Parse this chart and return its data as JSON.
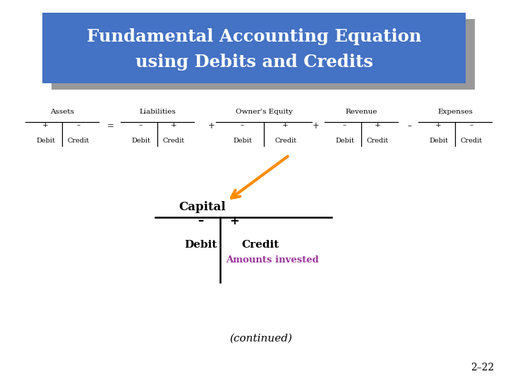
{
  "title_line1": "Fundamental Accounting Equation",
  "title_line2": "using Debits and Credits",
  "title_bg_color": "#4472C4",
  "title_shadow_color": "#999999",
  "title_text_color": "#FFFFFF",
  "bg_color": "#FFFFFF",
  "equation_items": [
    {
      "label": "Assets",
      "sign_left": "+",
      "sign_right": "–",
      "text_left": "Debit",
      "text_right": "Credit"
    },
    {
      "label": "Liabilities",
      "sign_left": "–",
      "sign_right": "+",
      "text_left": "Debit",
      "text_right": "Credit"
    },
    {
      "label": "Owner's Equity",
      "sign_left": "–",
      "sign_right": "+",
      "text_left": "Debit",
      "text_right": "Credit"
    },
    {
      "label": "Revenue",
      "sign_left": "–",
      "sign_right": "+",
      "text_left": "Debit",
      "text_right": "Credit"
    },
    {
      "label": "Expenses",
      "sign_left": "+",
      "sign_right": "–",
      "text_left": "Debit",
      "text_right": "Credit"
    }
  ],
  "connectors": [
    "=",
    "+",
    "+",
    "–"
  ],
  "capital_label": "Capital",
  "capital_left_sign": "–",
  "capital_right_sign": "+",
  "capital_left_text": "Debit",
  "capital_right_text": "Credit",
  "amounts_invested_text": "Amounts invested",
  "amounts_invested_color": "#993399",
  "arrow_color": "#FF8C00",
  "continued_text": "(continued)",
  "page_number": "2–22",
  "font_family": "DejaVu Serif"
}
